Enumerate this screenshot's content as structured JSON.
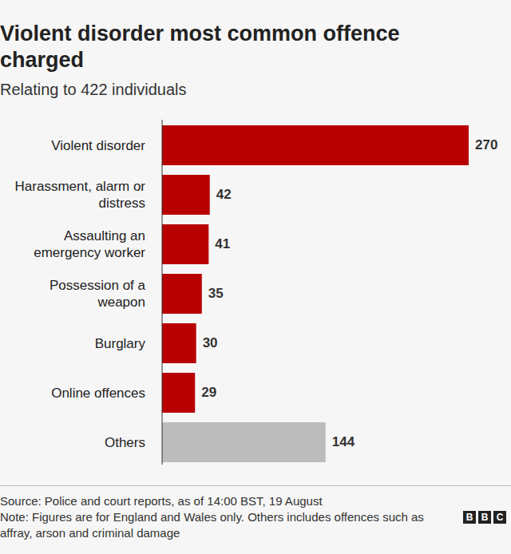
{
  "chart_data": {
    "type": "bar",
    "orientation": "horizontal",
    "title": "Violent disorder most common offence charged",
    "subtitle": "Relating to 422 individuals",
    "categories": [
      "Violent disorder",
      "Harassment, alarm or distress",
      "Assaulting an emergency worker",
      "Possession of a weapon",
      "Burglary",
      "Online offences",
      "Others"
    ],
    "values": [
      270,
      42,
      41,
      35,
      30,
      29,
      144
    ],
    "colors": [
      "#b80000",
      "#b80000",
      "#b80000",
      "#b80000",
      "#b80000",
      "#b80000",
      "#bcbcbc"
    ],
    "xlim": [
      0,
      270
    ],
    "data_labels": true,
    "tick_labels": "y",
    "grid": false,
    "source": "Source: Police and court reports, as of 14:00 BST, 19 August",
    "note": "Note: Figures are for England and Wales only. Others includes offences such as affray, arson and criminal damage",
    "logo": "BBC"
  }
}
